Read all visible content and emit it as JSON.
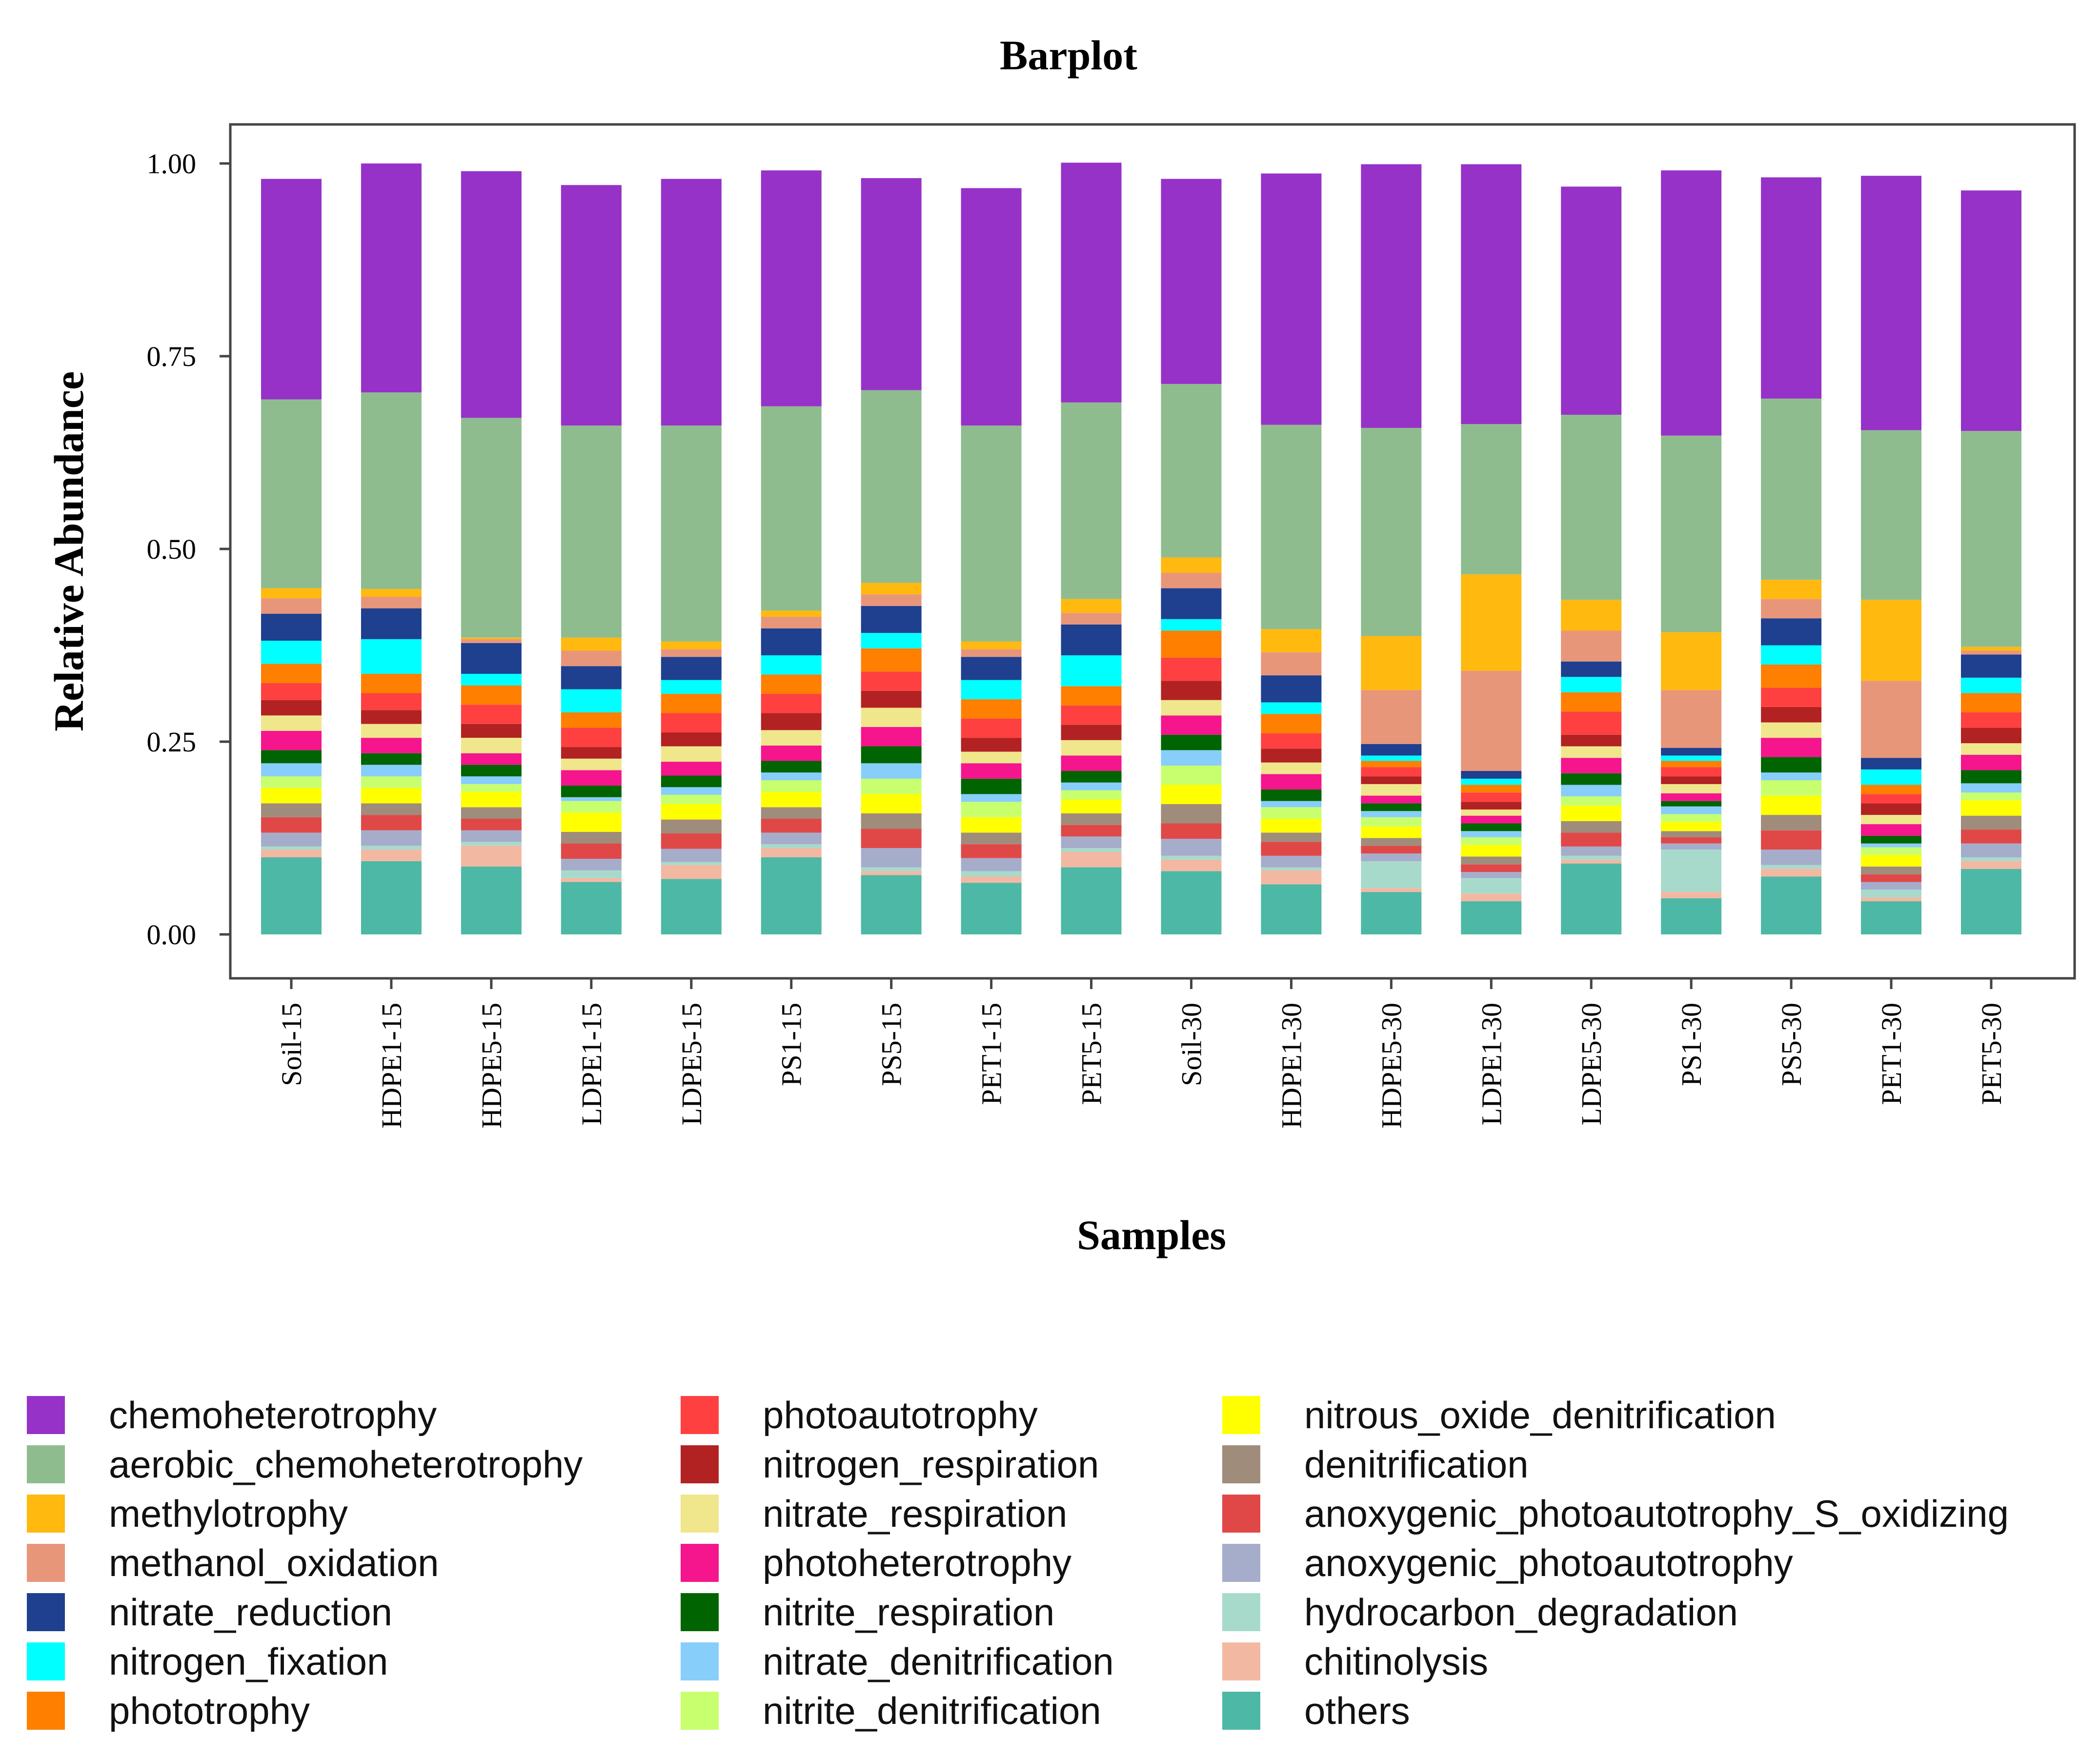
{
  "chart_data": {
    "type": "bar",
    "stacked": true,
    "title": "Barplot",
    "xlabel": "Samples",
    "ylabel": "Relative Abundance",
    "ylim": [
      0,
      1
    ],
    "yticks": [
      "0.00",
      "0.25",
      "0.50",
      "0.75",
      "1.00"
    ],
    "categories": [
      "Soil-15",
      "HDPE1-15",
      "HDPE5-15",
      "LDPE1-15",
      "LDPE5-15",
      "PS1-15",
      "PS5-15",
      "PET1-15",
      "PET5-15",
      "Soil-30",
      "HDPE1-30",
      "HDPE5-30",
      "LDPE1-30",
      "LDPE5-30",
      "PS1-30",
      "PS5-30",
      "PET1-30",
      "PET5-30"
    ],
    "legend_position": "bottom",
    "series": [
      {
        "name": "others",
        "color": "#4DB8A6",
        "values": [
          0.1,
          0.095,
          0.088,
          0.068,
          0.072,
          0.1,
          0.077,
          0.067,
          0.087,
          0.082,
          0.065,
          0.055,
          0.043,
          0.092,
          0.047,
          0.075,
          0.043,
          0.085
        ]
      },
      {
        "name": "chitinolysis",
        "color": "#F3B8A2",
        "values": [
          0.01,
          0.015,
          0.027,
          0.005,
          0.018,
          0.012,
          0.005,
          0.008,
          0.02,
          0.015,
          0.018,
          0.005,
          0.01,
          0.005,
          0.008,
          0.01,
          0.005,
          0.01
        ]
      },
      {
        "name": "hydrocarbon_degradation",
        "color": "#A8DACC",
        "values": [
          0.004,
          0.005,
          0.005,
          0.01,
          0.004,
          0.005,
          0.005,
          0.007,
          0.005,
          0.005,
          0.004,
          0.035,
          0.02,
          0.005,
          0.055,
          0.005,
          0.01,
          0.005
        ]
      },
      {
        "name": "anoxygenic_photoautotrophy",
        "color": "#A5ADCB",
        "values": [
          0.018,
          0.02,
          0.015,
          0.015,
          0.017,
          0.015,
          0.025,
          0.017,
          0.015,
          0.022,
          0.015,
          0.01,
          0.008,
          0.012,
          0.008,
          0.02,
          0.01,
          0.018
        ]
      },
      {
        "name": "anoxygenic_photoautotrophy_S_oxidizing",
        "color": "#E04848",
        "values": [
          0.02,
          0.02,
          0.015,
          0.02,
          0.02,
          0.018,
          0.025,
          0.018,
          0.015,
          0.02,
          0.018,
          0.01,
          0.01,
          0.018,
          0.008,
          0.025,
          0.01,
          0.018
        ]
      },
      {
        "name": "denitrification",
        "color": "#A08C7A",
        "values": [
          0.018,
          0.015,
          0.015,
          0.015,
          0.018,
          0.015,
          0.02,
          0.015,
          0.015,
          0.025,
          0.012,
          0.01,
          0.01,
          0.015,
          0.008,
          0.02,
          0.01,
          0.018
        ]
      },
      {
        "name": "nitrous_oxide_denitrification",
        "color": "#FFFF00",
        "values": [
          0.02,
          0.02,
          0.02,
          0.025,
          0.02,
          0.02,
          0.025,
          0.02,
          0.018,
          0.025,
          0.018,
          0.015,
          0.015,
          0.02,
          0.012,
          0.025,
          0.015,
          0.02
        ]
      },
      {
        "name": "nitrite_denitrification",
        "color": "#C8FF6E",
        "values": [
          0.015,
          0.015,
          0.01,
          0.015,
          0.012,
          0.015,
          0.02,
          0.02,
          0.012,
          0.025,
          0.015,
          0.012,
          0.01,
          0.012,
          0.01,
          0.02,
          0.01,
          0.01
        ]
      },
      {
        "name": "nitrate_denitrification",
        "color": "#87CEFA",
        "values": [
          0.017,
          0.015,
          0.01,
          0.005,
          0.01,
          0.01,
          0.02,
          0.01,
          0.01,
          0.02,
          0.008,
          0.008,
          0.008,
          0.015,
          0.01,
          0.01,
          0.005,
          0.012
        ]
      },
      {
        "name": "nitrite_respiration",
        "color": "#006400",
        "values": [
          0.017,
          0.015,
          0.015,
          0.015,
          0.015,
          0.015,
          0.022,
          0.02,
          0.015,
          0.02,
          0.015,
          0.01,
          0.01,
          0.015,
          0.007,
          0.02,
          0.01,
          0.017
        ]
      },
      {
        "name": "photoheterotrophy",
        "color": "#F5158C",
        "values": [
          0.025,
          0.02,
          0.015,
          0.02,
          0.018,
          0.02,
          0.025,
          0.02,
          0.02,
          0.025,
          0.02,
          0.01,
          0.01,
          0.02,
          0.01,
          0.025,
          0.015,
          0.02
        ]
      },
      {
        "name": "nitrate_respiration",
        "color": "#F0E68C",
        "values": [
          0.02,
          0.018,
          0.02,
          0.015,
          0.02,
          0.02,
          0.025,
          0.015,
          0.02,
          0.02,
          0.015,
          0.015,
          0.008,
          0.015,
          0.012,
          0.02,
          0.012,
          0.015
        ]
      },
      {
        "name": "nitrogen_respiration",
        "color": "#B22222",
        "values": [
          0.02,
          0.018,
          0.018,
          0.015,
          0.018,
          0.022,
          0.022,
          0.018,
          0.02,
          0.025,
          0.018,
          0.01,
          0.01,
          0.015,
          0.01,
          0.02,
          0.015,
          0.02
        ]
      },
      {
        "name": "photoautotrophy",
        "color": "#FF4040",
        "values": [
          0.022,
          0.022,
          0.025,
          0.025,
          0.025,
          0.025,
          0.025,
          0.025,
          0.025,
          0.03,
          0.02,
          0.012,
          0.012,
          0.03,
          0.012,
          0.025,
          0.012,
          0.02
        ]
      },
      {
        "name": "phototrophy",
        "color": "#FF7F00",
        "values": [
          0.025,
          0.025,
          0.025,
          0.02,
          0.025,
          0.025,
          0.03,
          0.025,
          0.025,
          0.035,
          0.025,
          0.008,
          0.01,
          0.025,
          0.008,
          0.03,
          0.012,
          0.025
        ]
      },
      {
        "name": "nitrogen_fixation",
        "color": "#00FFFF",
        "values": [
          0.03,
          0.045,
          0.015,
          0.03,
          0.018,
          0.025,
          0.02,
          0.025,
          0.04,
          0.015,
          0.015,
          0.007,
          0.008,
          0.02,
          0.007,
          0.025,
          0.02,
          0.02
        ]
      },
      {
        "name": "nitrate_reduction",
        "color": "#1F3F8F",
        "values": [
          0.035,
          0.04,
          0.04,
          0.03,
          0.03,
          0.035,
          0.035,
          0.03,
          0.04,
          0.04,
          0.035,
          0.015,
          0.01,
          0.02,
          0.01,
          0.035,
          0.015,
          0.03
        ]
      },
      {
        "name": "methanol_oxidation",
        "color": "#E8967A",
        "values": [
          0.02,
          0.015,
          0.005,
          0.02,
          0.01,
          0.015,
          0.015,
          0.01,
          0.015,
          0.02,
          0.03,
          0.07,
          0.13,
          0.04,
          0.075,
          0.025,
          0.1,
          0.005
        ]
      },
      {
        "name": "methylotrophy",
        "color": "#FFB90F",
        "values": [
          0.013,
          0.01,
          0.002,
          0.017,
          0.01,
          0.008,
          0.015,
          0.01,
          0.018,
          0.02,
          0.03,
          0.07,
          0.125,
          0.04,
          0.075,
          0.025,
          0.105,
          0.005
        ]
      },
      {
        "name": "aerobic_chemoheterotrophy",
        "color": "#8FBC8F",
        "values": [
          0.245,
          0.255,
          0.285,
          0.275,
          0.28,
          0.265,
          0.25,
          0.28,
          0.255,
          0.225,
          0.265,
          0.27,
          0.195,
          0.24,
          0.255,
          0.235,
          0.22,
          0.28
        ]
      },
      {
        "name": "chemoheterotrophy",
        "color": "#9632C8",
        "values": [
          0.286,
          0.297,
          0.32,
          0.312,
          0.32,
          0.306,
          0.275,
          0.308,
          0.311,
          0.266,
          0.326,
          0.342,
          0.337,
          0.296,
          0.344,
          0.287,
          0.33,
          0.312
        ]
      }
    ],
    "legend": [
      [
        "chemoheterotrophy",
        "aerobic_chemoheterotrophy",
        "methylotrophy",
        "methanol_oxidation",
        "nitrate_reduction",
        "nitrogen_fixation",
        "phototrophy"
      ],
      [
        "photoautotrophy",
        "nitrogen_respiration",
        "nitrate_respiration",
        "photoheterotrophy",
        "nitrite_respiration",
        "nitrate_denitrification",
        "nitrite_denitrification"
      ],
      [
        "nitrous_oxide_denitrification",
        "denitrification",
        "anoxygenic_photoautotrophy_S_oxidizing",
        "anoxygenic_photoautotrophy",
        "hydrocarbon_degradation",
        "chitinolysis",
        "others"
      ]
    ]
  }
}
